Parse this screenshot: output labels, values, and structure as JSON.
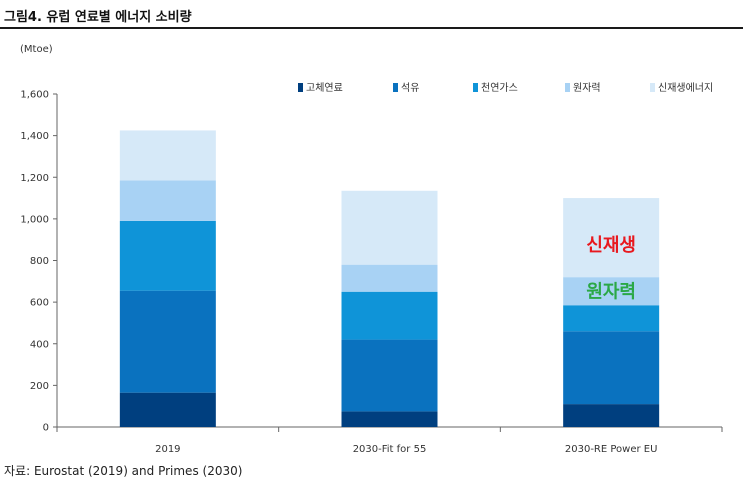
{
  "figure_title": "그림4.  유럽 연료별 에너지 소비량",
  "unit": "(Mtoe)",
  "source": "자료:  Eurostat (2019) and Primes (2030)",
  "colors": {
    "고체연료": "#003f7f",
    "석유": "#0a72bf",
    "천연가스": "#0f94d8",
    "원자력": "#a8d2f4",
    "신재생에너지": "#d6e9f8"
  },
  "chart_data": {
    "type": "bar",
    "stacked": true,
    "categories": [
      "2019",
      "2030-Fit for 55",
      "2030-RE Power EU"
    ],
    "series": [
      {
        "name": "고체연료",
        "values": [
          165,
          75,
          110
        ]
      },
      {
        "name": "석유",
        "values": [
          490,
          345,
          350
        ]
      },
      {
        "name": "천연가스",
        "values": [
          335,
          230,
          125
        ]
      },
      {
        "name": "원자력",
        "values": [
          195,
          130,
          135
        ]
      },
      {
        "name": "신재생에너지",
        "values": [
          240,
          355,
          380
        ]
      }
    ],
    "ylim": [
      0,
      1600
    ],
    "yticks": [
      "0",
      "200",
      "400",
      "600",
      "800",
      "1,000",
      "1,200",
      "1,400",
      "1,600"
    ],
    "legend_position": "top",
    "grid": false,
    "annotations": [
      {
        "text": "신재생",
        "color": "#e8191f",
        "category": "2030-RE Power EU",
        "y": 880
      },
      {
        "text": "원자력",
        "color": "#2aa846",
        "category": "2030-RE Power EU",
        "y": 655
      }
    ]
  }
}
